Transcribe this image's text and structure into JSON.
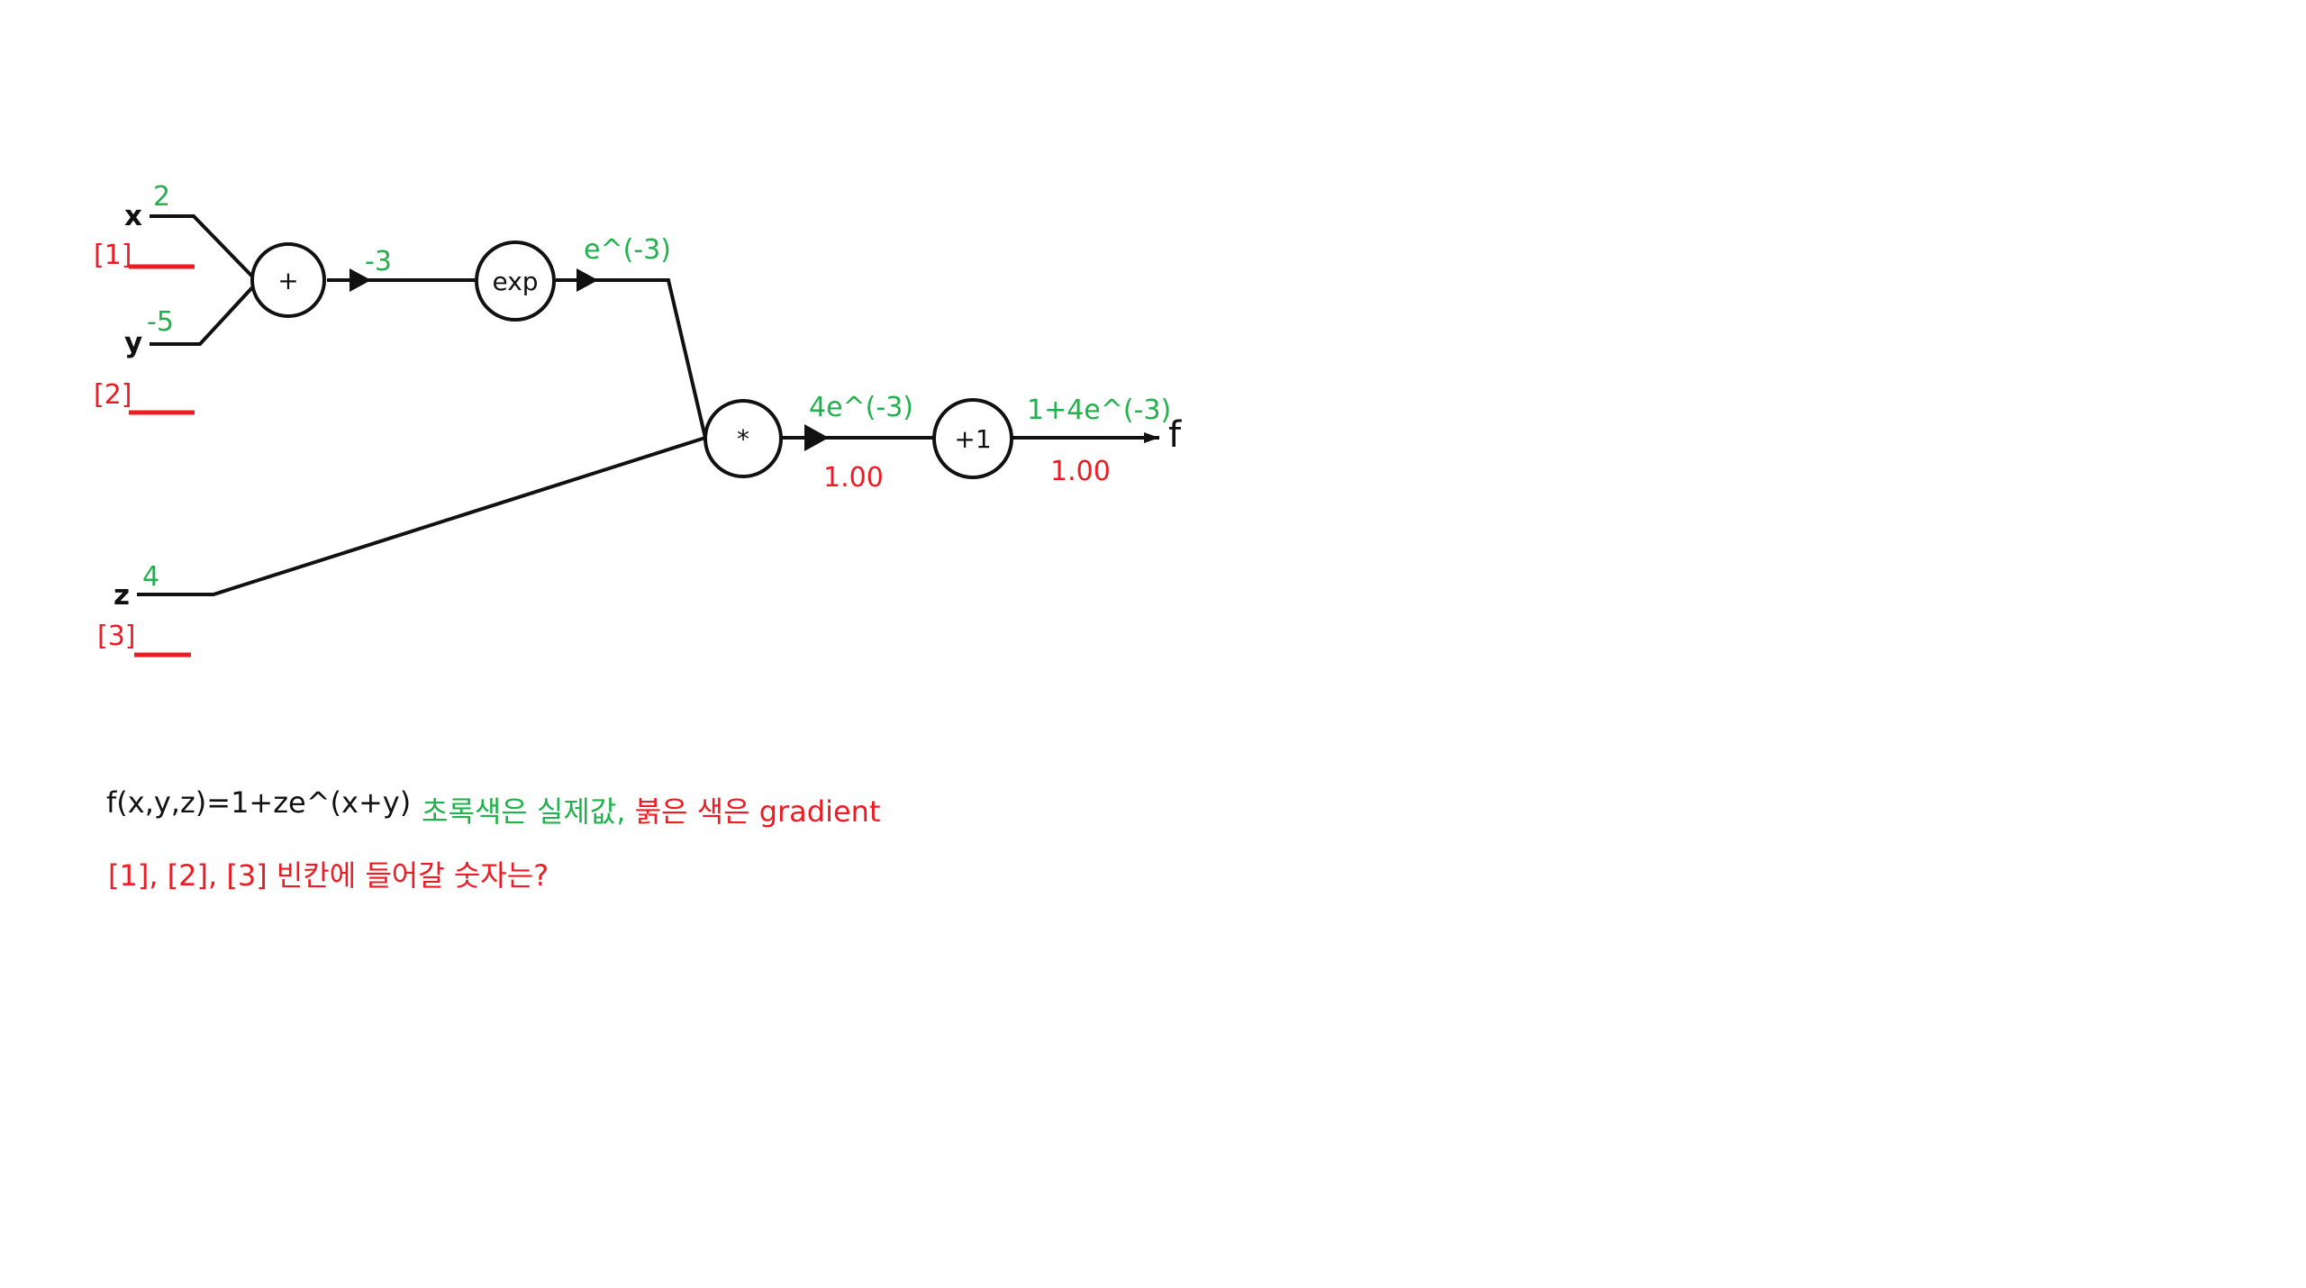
{
  "colors": {
    "value": "#22b14c",
    "gradient": "#ed1c24",
    "line": "#111111"
  },
  "inputs": {
    "x": {
      "name": "x",
      "value": "2",
      "blank": "[1]"
    },
    "y": {
      "name": "y",
      "value": "-5",
      "blank": "[2]"
    },
    "z": {
      "name": "z",
      "value": "4",
      "blank": "[3]"
    }
  },
  "nodes": {
    "add": "+",
    "exp": "exp",
    "mul": "*",
    "plus_one": "+1"
  },
  "edges": {
    "add_out_value": "-3",
    "exp_out_value": "e^(-3)",
    "mul_out_value": "4e^(-3)",
    "mul_out_gradient": "1.00",
    "final_value": "1+4e^(-3)",
    "final_gradient": "1.00"
  },
  "output_label": "f",
  "formula": "f(x,y,z)=1+ze^(x+y)",
  "legend": {
    "green_part": "초록색은 실제값,",
    "red_part": "붉은 색은 gradient"
  },
  "question": "[1], [2], [3] 빈칸에 들어갈 숫자는?"
}
